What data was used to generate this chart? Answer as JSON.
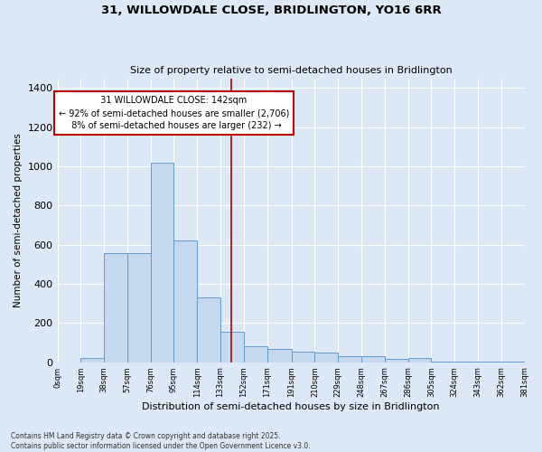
{
  "title": "31, WILLOWDALE CLOSE, BRIDLINGTON, YO16 6RR",
  "subtitle": "Size of property relative to semi-detached houses in Bridlington",
  "xlabel": "Distribution of semi-detached houses by size in Bridlington",
  "ylabel": "Number of semi-detached properties",
  "property_label": "31 WILLOWDALE CLOSE: 142sqm",
  "pct_smaller": 92,
  "n_smaller": 2706,
  "pct_larger": 8,
  "n_larger": 232,
  "bin_edges": [
    0,
    19,
    38,
    57,
    76,
    95,
    114,
    133,
    152,
    171,
    191,
    210,
    229,
    248,
    267,
    286,
    305,
    324,
    343,
    362,
    381
  ],
  "bin_counts": [
    0,
    20,
    555,
    555,
    1020,
    620,
    330,
    155,
    80,
    70,
    55,
    50,
    30,
    30,
    15,
    20,
    5,
    5,
    5,
    5
  ],
  "bar_color": "#c5d8f0",
  "bar_edge_color": "#6699cc",
  "bar_edge_width": 0.7,
  "vline_color": "#bb0000",
  "vline_x": 142,
  "annotation_box_edgecolor": "#bb0000",
  "background_color": "#dce8f5",
  "grid_color": "#ffffff",
  "ylim": [
    0,
    1450
  ],
  "yticks": [
    0,
    200,
    400,
    600,
    800,
    1000,
    1200,
    1400
  ],
  "footer_text": "Contains HM Land Registry data © Crown copyright and database right 2025.\nContains public sector information licensed under the Open Government Licence v3.0."
}
